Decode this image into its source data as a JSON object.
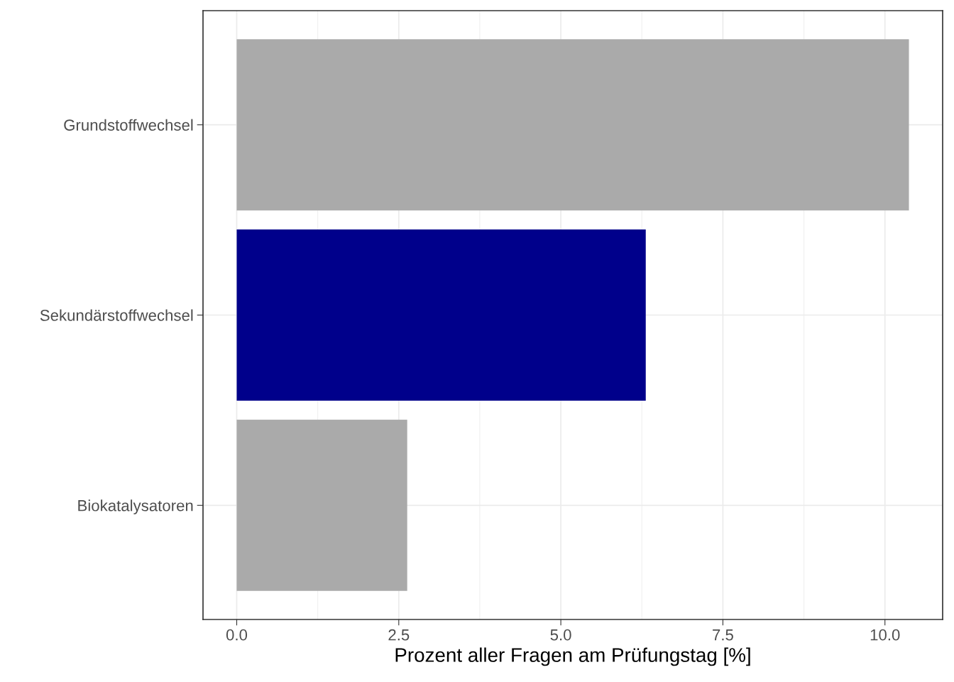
{
  "chart_data": {
    "type": "bar",
    "orientation": "horizontal",
    "xlabel": "Prozent aller Fragen am Prüfungstag [%]",
    "categories": [
      "Grundstoffwechsel",
      "Sekundärstoffwechsel",
      "Biokatalysatoren"
    ],
    "values": [
      10.37,
      6.31,
      2.63
    ],
    "colors": [
      "#aaaaaa",
      "#00008b",
      "#aaaaaa"
    ],
    "xlim": [
      -0.52,
      10.89
    ],
    "xticks": [
      {
        "value": 0,
        "label": "0.0"
      },
      2.5,
      {
        "value": 5,
        "label": "5.0"
      },
      7.5,
      {
        "value": 10,
        "label": "10.0"
      }
    ],
    "grid": true,
    "legend": false
  }
}
